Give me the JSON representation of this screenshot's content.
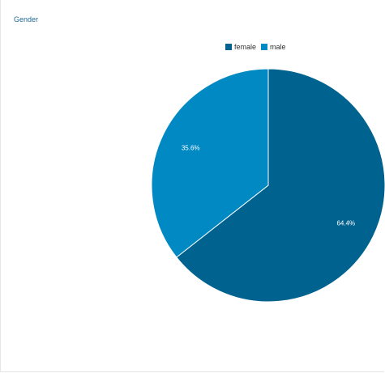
{
  "panel": {
    "title": "Gender"
  },
  "colors": {
    "female": "#00628f",
    "male": "#0089c2",
    "title": "#1f6a98"
  },
  "chart_data": {
    "type": "pie",
    "title": "Gender",
    "legend_position": "top",
    "categories": [
      "female",
      "male"
    ],
    "values": [
      64.4,
      35.6
    ],
    "labels": [
      "64.4%",
      "35.6%"
    ],
    "colors": [
      "#00628f",
      "#0089c2"
    ]
  }
}
